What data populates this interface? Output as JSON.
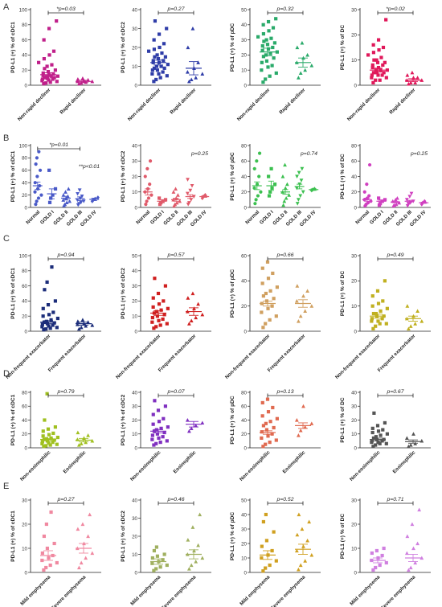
{
  "chart_data": [
    {
      "panel": "A",
      "type": "scatter",
      "ylabel": "PD-L1 (+) % of cDC1",
      "ylim": [
        0,
        100
      ],
      "yticks": [
        0,
        20,
        40,
        60,
        80,
        100
      ],
      "color": "#c0208a",
      "categories": [
        "Non-rapid decliner",
        "Rapid decliner"
      ],
      "pvalue": "*p=0.03",
      "means": [
        14,
        5
      ],
      "sems": [
        2.5,
        1.5
      ],
      "points": [
        [
          2,
          3,
          4,
          5,
          6,
          7,
          8,
          8,
          9,
          10,
          10,
          11,
          12,
          12,
          13,
          14,
          15,
          16,
          18,
          20,
          22,
          25,
          27,
          30,
          35,
          40,
          45,
          60,
          75,
          85
        ],
        [
          2,
          3,
          4,
          5,
          5,
          6,
          7,
          8,
          9
        ]
      ]
    },
    {
      "panel": "A",
      "type": "scatter",
      "ylabel": "PD-L1 (+) % of cDC2",
      "ylim": [
        0,
        40
      ],
      "yticks": [
        0,
        10,
        20,
        30,
        40
      ],
      "color": "#2f3da8",
      "categories": [
        "Non-rapid decliner",
        "Rapid decliner"
      ],
      "pvalue": "p=0.27",
      "means": [
        12,
        9
      ],
      "sems": [
        1.3,
        3.5
      ],
      "points": [
        [
          2,
          3,
          4,
          5,
          6,
          6,
          7,
          8,
          8,
          9,
          9,
          10,
          10,
          11,
          12,
          12,
          13,
          13,
          14,
          15,
          15,
          16,
          17,
          18,
          19,
          20,
          22,
          24,
          27,
          30,
          34
        ],
        [
          2,
          3,
          4,
          6,
          7,
          9,
          12,
          20,
          30
        ]
      ]
    },
    {
      "panel": "A",
      "type": "scatter",
      "ylabel": "PD-L1 (+) % of pDC",
      "ylim": [
        0,
        50
      ],
      "yticks": [
        0,
        10,
        20,
        30,
        40,
        50
      ],
      "color": "#2aaa6a",
      "categories": [
        "Non-rapid decliner",
        "Rapid decliner"
      ],
      "pvalue": "p=0.32",
      "means": [
        22,
        15
      ],
      "sems": [
        2.5,
        3
      ],
      "points": [
        [
          2,
          4,
          6,
          8,
          10,
          12,
          13,
          15,
          16,
          18,
          19,
          20,
          21,
          22,
          23,
          24,
          25,
          26,
          27,
          28,
          29,
          30,
          31,
          32,
          34,
          36,
          38,
          40,
          42,
          44
        ],
        [
          5,
          8,
          10,
          13,
          15,
          18,
          20,
          25,
          28
        ]
      ]
    },
    {
      "panel": "A",
      "type": "scatter",
      "ylabel": "PD-L1 (+) % of DC",
      "ylim": [
        0,
        30
      ],
      "yticks": [
        0,
        10,
        20,
        30
      ],
      "color": "#e0185a",
      "categories": [
        "Non-rapid decliner",
        "Rapid decliner"
      ],
      "pvalue": "*p=0.02",
      "means": [
        6,
        2
      ],
      "sems": [
        0.8,
        0.6
      ],
      "points": [
        [
          1,
          2,
          2,
          3,
          3,
          4,
          4,
          4,
          5,
          5,
          5,
          6,
          6,
          6,
          7,
          7,
          8,
          8,
          9,
          9,
          10,
          10,
          11,
          12,
          13,
          14,
          15,
          16,
          18,
          26
        ],
        [
          0.5,
          1,
          1,
          2,
          2,
          3,
          3,
          4,
          5
        ]
      ]
    },
    {
      "panel": "B",
      "type": "scatter",
      "ylabel": "PD-L1 (+) % of cDC1",
      "ylim": [
        0,
        100
      ],
      "yticks": [
        0,
        20,
        40,
        60,
        80,
        100
      ],
      "color": "#4a5ac8",
      "categories": [
        "Normal",
        "GOLD I",
        "GOLD II",
        "GOLD III",
        "GOLD IV"
      ],
      "pvalue": "*p=0.01",
      "pvalue2": "**p<0.01",
      "means": [
        35,
        22,
        15,
        14,
        13
      ],
      "sems": [
        6,
        8,
        3,
        3,
        2
      ],
      "points": [
        [
          5,
          10,
          15,
          20,
          25,
          30,
          35,
          40,
          50,
          60,
          70,
          80,
          90
        ],
        [
          8,
          15,
          20,
          30,
          60
        ],
        [
          3,
          5,
          8,
          10,
          12,
          15,
          18,
          20,
          25,
          30
        ],
        [
          4,
          6,
          8,
          10,
          12,
          15,
          18,
          22,
          28
        ],
        [
          10,
          12,
          14,
          16
        ]
      ]
    },
    {
      "panel": "B",
      "type": "scatter",
      "ylabel": "PD-L1 (+) % of cDC2",
      "ylim": [
        0,
        40
      ],
      "yticks": [
        0,
        10,
        20,
        30,
        40
      ],
      "color": "#e05a6a",
      "categories": [
        "Normal",
        "GOLD I",
        "GOLD II",
        "GOLD III",
        "GOLD IV"
      ],
      "pvalue": "p=0.25",
      "means": [
        10,
        4,
        5,
        7,
        7
      ],
      "sems": [
        2,
        1,
        1,
        1.2,
        0.5
      ],
      "points": [
        [
          2,
          4,
          6,
          8,
          10,
          12,
          15,
          20,
          25,
          30
        ],
        [
          2,
          3,
          4,
          5,
          6
        ],
        [
          1,
          2,
          3,
          4,
          5,
          6,
          8,
          10,
          12
        ],
        [
          2,
          3,
          5,
          7,
          9,
          11,
          14,
          18
        ],
        [
          6,
          7,
          8
        ]
      ]
    },
    {
      "panel": "B",
      "type": "scatter",
      "ylabel": "PD-L1 (+) % of pDC",
      "ylim": [
        0,
        80
      ],
      "yticks": [
        0,
        20,
        40,
        60,
        80
      ],
      "color": "#3cc050",
      "categories": [
        "Normal",
        "GOLD I",
        "GOLD II",
        "GOLD III",
        "GOLD IV"
      ],
      "pvalue": "p=0.74",
      "means": [
        28,
        28,
        20,
        27,
        23
      ],
      "sems": [
        5,
        6,
        3,
        3,
        1
      ],
      "points": [
        [
          5,
          10,
          15,
          20,
          25,
          30,
          40,
          50,
          60,
          70
        ],
        [
          15,
          20,
          25,
          30,
          40,
          50
        ],
        [
          3,
          8,
          12,
          16,
          20,
          25,
          30,
          40,
          55
        ],
        [
          5,
          10,
          15,
          20,
          25,
          30,
          35,
          40,
          45,
          50
        ],
        [
          22,
          23,
          24
        ]
      ]
    },
    {
      "panel": "B",
      "type": "scatter",
      "ylabel": "PD-L1 (+) % of DC",
      "ylim": [
        0,
        80
      ],
      "yticks": [
        0,
        20,
        40,
        60,
        80
      ],
      "color": "#d040c0",
      "categories": [
        "Normal",
        "GOLD I",
        "GOLD II",
        "GOLD III",
        "GOLD IV"
      ],
      "pvalue": "p=0.25",
      "means": [
        10,
        8,
        7,
        8,
        6
      ],
      "sems": [
        2,
        1.5,
        1,
        1.2,
        0.8
      ],
      "points": [
        [
          2,
          4,
          6,
          8,
          10,
          12,
          15,
          20,
          30,
          55
        ],
        [
          3,
          5,
          8,
          10,
          12
        ],
        [
          2,
          3,
          4,
          6,
          8,
          10,
          12
        ],
        [
          2,
          4,
          6,
          8,
          10,
          14,
          18
        ],
        [
          4,
          6,
          8
        ]
      ]
    },
    {
      "panel": "C",
      "type": "scatter",
      "ylabel": "PD-L1 (+) % of cDC1",
      "ylim": [
        0,
        100
      ],
      "yticks": [
        0,
        20,
        40,
        60,
        80,
        100
      ],
      "color": "#1c2d7a",
      "categories": [
        "Non-frequent exacerbator",
        "Frequent exacerbator"
      ],
      "pvalue": "p=0.94",
      "means": [
        12,
        10
      ],
      "sems": [
        2,
        2
      ],
      "points": [
        [
          2,
          3,
          4,
          5,
          6,
          7,
          8,
          9,
          10,
          11,
          12,
          13,
          15,
          17,
          20,
          22,
          25,
          30,
          35,
          40,
          55,
          65,
          85
        ],
        [
          3,
          5,
          7,
          8,
          9,
          10,
          12,
          13,
          15
        ]
      ]
    },
    {
      "panel": "C",
      "type": "scatter",
      "ylabel": "PD-L1 (+) % of cDC2",
      "ylim": [
        0,
        50
      ],
      "yticks": [
        0,
        10,
        20,
        30,
        40,
        50
      ],
      "color": "#d02020",
      "categories": [
        "Non-frequent exacerbator",
        "Frequent exacerbator"
      ],
      "pvalue": "p=0.57",
      "means": [
        12,
        13
      ],
      "sems": [
        1.5,
        2.5
      ],
      "points": [
        [
          2,
          3,
          4,
          5,
          6,
          7,
          8,
          9,
          10,
          11,
          12,
          13,
          14,
          15,
          16,
          18,
          20,
          22,
          25,
          30,
          35
        ],
        [
          5,
          7,
          9,
          11,
          13,
          15,
          18,
          22,
          25
        ]
      ]
    },
    {
      "panel": "C",
      "type": "scatter",
      "ylabel": "PD-L1 (+) % of pDC",
      "ylim": [
        0,
        60
      ],
      "yticks": [
        0,
        20,
        40,
        60
      ],
      "color": "#d0a060",
      "categories": [
        "Non-frequent exacerbator",
        "Frequent exacerbator"
      ],
      "pvalue": "p=0.66",
      "means": [
        22,
        22
      ],
      "sems": [
        2,
        3
      ],
      "points": [
        [
          3,
          6,
          9,
          12,
          15,
          18,
          20,
          22,
          24,
          26,
          28,
          30,
          32,
          35,
          38,
          42,
          46,
          50,
          55
        ],
        [
          8,
          12,
          16,
          20,
          24,
          28,
          32,
          36
        ]
      ]
    },
    {
      "panel": "C",
      "type": "scatter",
      "ylabel": "PD-L1 (+) % of DC",
      "ylim": [
        0,
        30
      ],
      "yticks": [
        0,
        10,
        20,
        30
      ],
      "color": "#c0b020",
      "categories": [
        "Non-frequent exacerbator",
        "Frequent exacerbator"
      ],
      "pvalue": "p=0.49",
      "means": [
        6,
        5
      ],
      "sems": [
        0.8,
        1
      ],
      "points": [
        [
          1,
          2,
          3,
          3,
          4,
          4,
          5,
          5,
          6,
          6,
          7,
          7,
          8,
          9,
          10,
          11,
          12,
          14,
          16,
          20
        ],
        [
          1,
          2,
          3,
          4,
          5,
          6,
          8,
          10
        ]
      ]
    },
    {
      "panel": "D",
      "type": "scatter",
      "ylabel": "PD-L1 (+) % of cDC1",
      "ylim": [
        0,
        80
      ],
      "yticks": [
        0,
        20,
        40,
        60,
        80
      ],
      "color": "#a0c020",
      "categories": [
        "Non-eosinophilic",
        "Eosinophilic"
      ],
      "pvalue": "p=0.79",
      "means": [
        12,
        11
      ],
      "sems": [
        1.5,
        2.5
      ],
      "points": [
        [
          2,
          3,
          4,
          5,
          6,
          7,
          8,
          9,
          10,
          11,
          12,
          13,
          14,
          15,
          17,
          19,
          21,
          24,
          27,
          30,
          40,
          78
        ],
        [
          4,
          6,
          8,
          10,
          12,
          14,
          18,
          22
        ]
      ]
    },
    {
      "panel": "D",
      "type": "scatter",
      "ylabel": "PD-L1 (+) % of cDC2",
      "ylim": [
        0,
        40
      ],
      "yticks": [
        0,
        10,
        20,
        30,
        40
      ],
      "color": "#8030c0",
      "categories": [
        "Non-eosinophilic",
        "Eosinophilic"
      ],
      "pvalue": "p=0.07",
      "means": [
        12,
        17
      ],
      "sems": [
        1.2,
        2
      ],
      "points": [
        [
          2,
          3,
          4,
          5,
          6,
          7,
          8,
          9,
          10,
          11,
          12,
          13,
          14,
          15,
          17,
          19,
          21,
          24,
          27,
          30,
          34
        ],
        [
          12,
          14,
          16,
          18,
          20
        ]
      ]
    },
    {
      "panel": "D",
      "type": "scatter",
      "ylabel": "PD-L1 (+) % of pDC",
      "ylim": [
        0,
        80
      ],
      "yticks": [
        0,
        20,
        40,
        60,
        80
      ],
      "color": "#e06a50",
      "categories": [
        "Non-eosinophilic",
        "Eosinophilic"
      ],
      "pvalue": "p=0.13",
      "means": [
        22,
        32
      ],
      "sems": [
        2.5,
        4
      ],
      "points": [
        [
          2,
          5,
          8,
          11,
          14,
          17,
          20,
          23,
          26,
          29,
          32,
          35,
          38,
          42,
          46,
          52,
          58,
          65,
          70
        ],
        [
          18,
          25,
          30,
          35,
          40,
          60
        ]
      ]
    },
    {
      "panel": "D",
      "type": "scatter",
      "ylabel": "PD-L1 (+) % of DC",
      "ylim": [
        0,
        40
      ],
      "yticks": [
        0,
        10,
        20,
        30,
        40
      ],
      "color": "#555555",
      "categories": [
        "Non-eosinophilic",
        "Eosinophilic"
      ],
      "pvalue": "p=0.67",
      "means": [
        6,
        4.5
      ],
      "sems": [
        1,
        1.2
      ],
      "points": [
        [
          1,
          2,
          3,
          3,
          4,
          4,
          5,
          5,
          6,
          6,
          7,
          8,
          9,
          10,
          11,
          12,
          13,
          14,
          16,
          18,
          25
        ],
        [
          1,
          2,
          3,
          5,
          7,
          10
        ]
      ]
    },
    {
      "panel": "E",
      "type": "scatter",
      "ylabel": "PD-L1 (+) % of cDC1",
      "ylim": [
        0,
        30
      ],
      "yticks": [
        0,
        10,
        20,
        30
      ],
      "color": "#f088a0",
      "categories": [
        "Mild emphysema",
        "Severe emphysema"
      ],
      "pvalue": "p=0.27",
      "means": [
        7,
        10
      ],
      "sems": [
        2,
        2
      ],
      "points": [
        [
          1,
          2,
          3,
          4,
          5,
          6,
          7,
          8,
          10,
          12,
          15,
          20,
          25
        ],
        [
          2,
          4,
          6,
          8,
          10,
          12,
          15,
          18,
          20,
          24
        ]
      ]
    },
    {
      "panel": "E",
      "type": "scatter",
      "ylabel": "PD-L1 (+) % of cDC2",
      "ylim": [
        0,
        40
      ],
      "yticks": [
        0,
        10,
        20,
        30,
        40
      ],
      "color": "#a0b060",
      "categories": [
        "Mild emphysema",
        "Severe emphysema"
      ],
      "pvalue": "p=0.46",
      "means": [
        6,
        10
      ],
      "sems": [
        1.5,
        2.5
      ],
      "points": [
        [
          1,
          2,
          3,
          4,
          5,
          6,
          7,
          8,
          9,
          10,
          12,
          14
        ],
        [
          2,
          4,
          6,
          8,
          10,
          12,
          15,
          18,
          25,
          32
        ]
      ]
    },
    {
      "panel": "E",
      "type": "scatter",
      "ylabel": "PD-L1 (+) % of pDC",
      "ylim": [
        0,
        50
      ],
      "yticks": [
        0,
        10,
        20,
        30,
        40,
        50
      ],
      "color": "#d0a020",
      "categories": [
        "Mild emphysema",
        "Severe emphysema"
      ],
      "pvalue": "p=0.52",
      "means": [
        12,
        16
      ],
      "sems": [
        3,
        3.5
      ],
      "points": [
        [
          1,
          3,
          5,
          8,
          10,
          12,
          15,
          18,
          22,
          28,
          35,
          40
        ],
        [
          2,
          5,
          8,
          12,
          15,
          18,
          22,
          26,
          30,
          35,
          40
        ]
      ]
    },
    {
      "panel": "E",
      "type": "scatter",
      "ylabel": "PD-L1 (+) % of DC",
      "ylim": [
        0,
        30
      ],
      "yticks": [
        0,
        10,
        20,
        30
      ],
      "color": "#d080e0",
      "categories": [
        "Mild emphysema",
        "Severe emphysema"
      ],
      "pvalue": "p=0.71",
      "means": [
        5,
        6
      ],
      "sems": [
        1,
        1.5
      ],
      "points": [
        [
          1,
          2,
          3,
          4,
          5,
          6,
          7,
          8,
          9,
          10
        ],
        [
          1,
          2,
          4,
          6,
          8,
          10,
          12,
          15,
          20,
          26
        ]
      ]
    }
  ]
}
